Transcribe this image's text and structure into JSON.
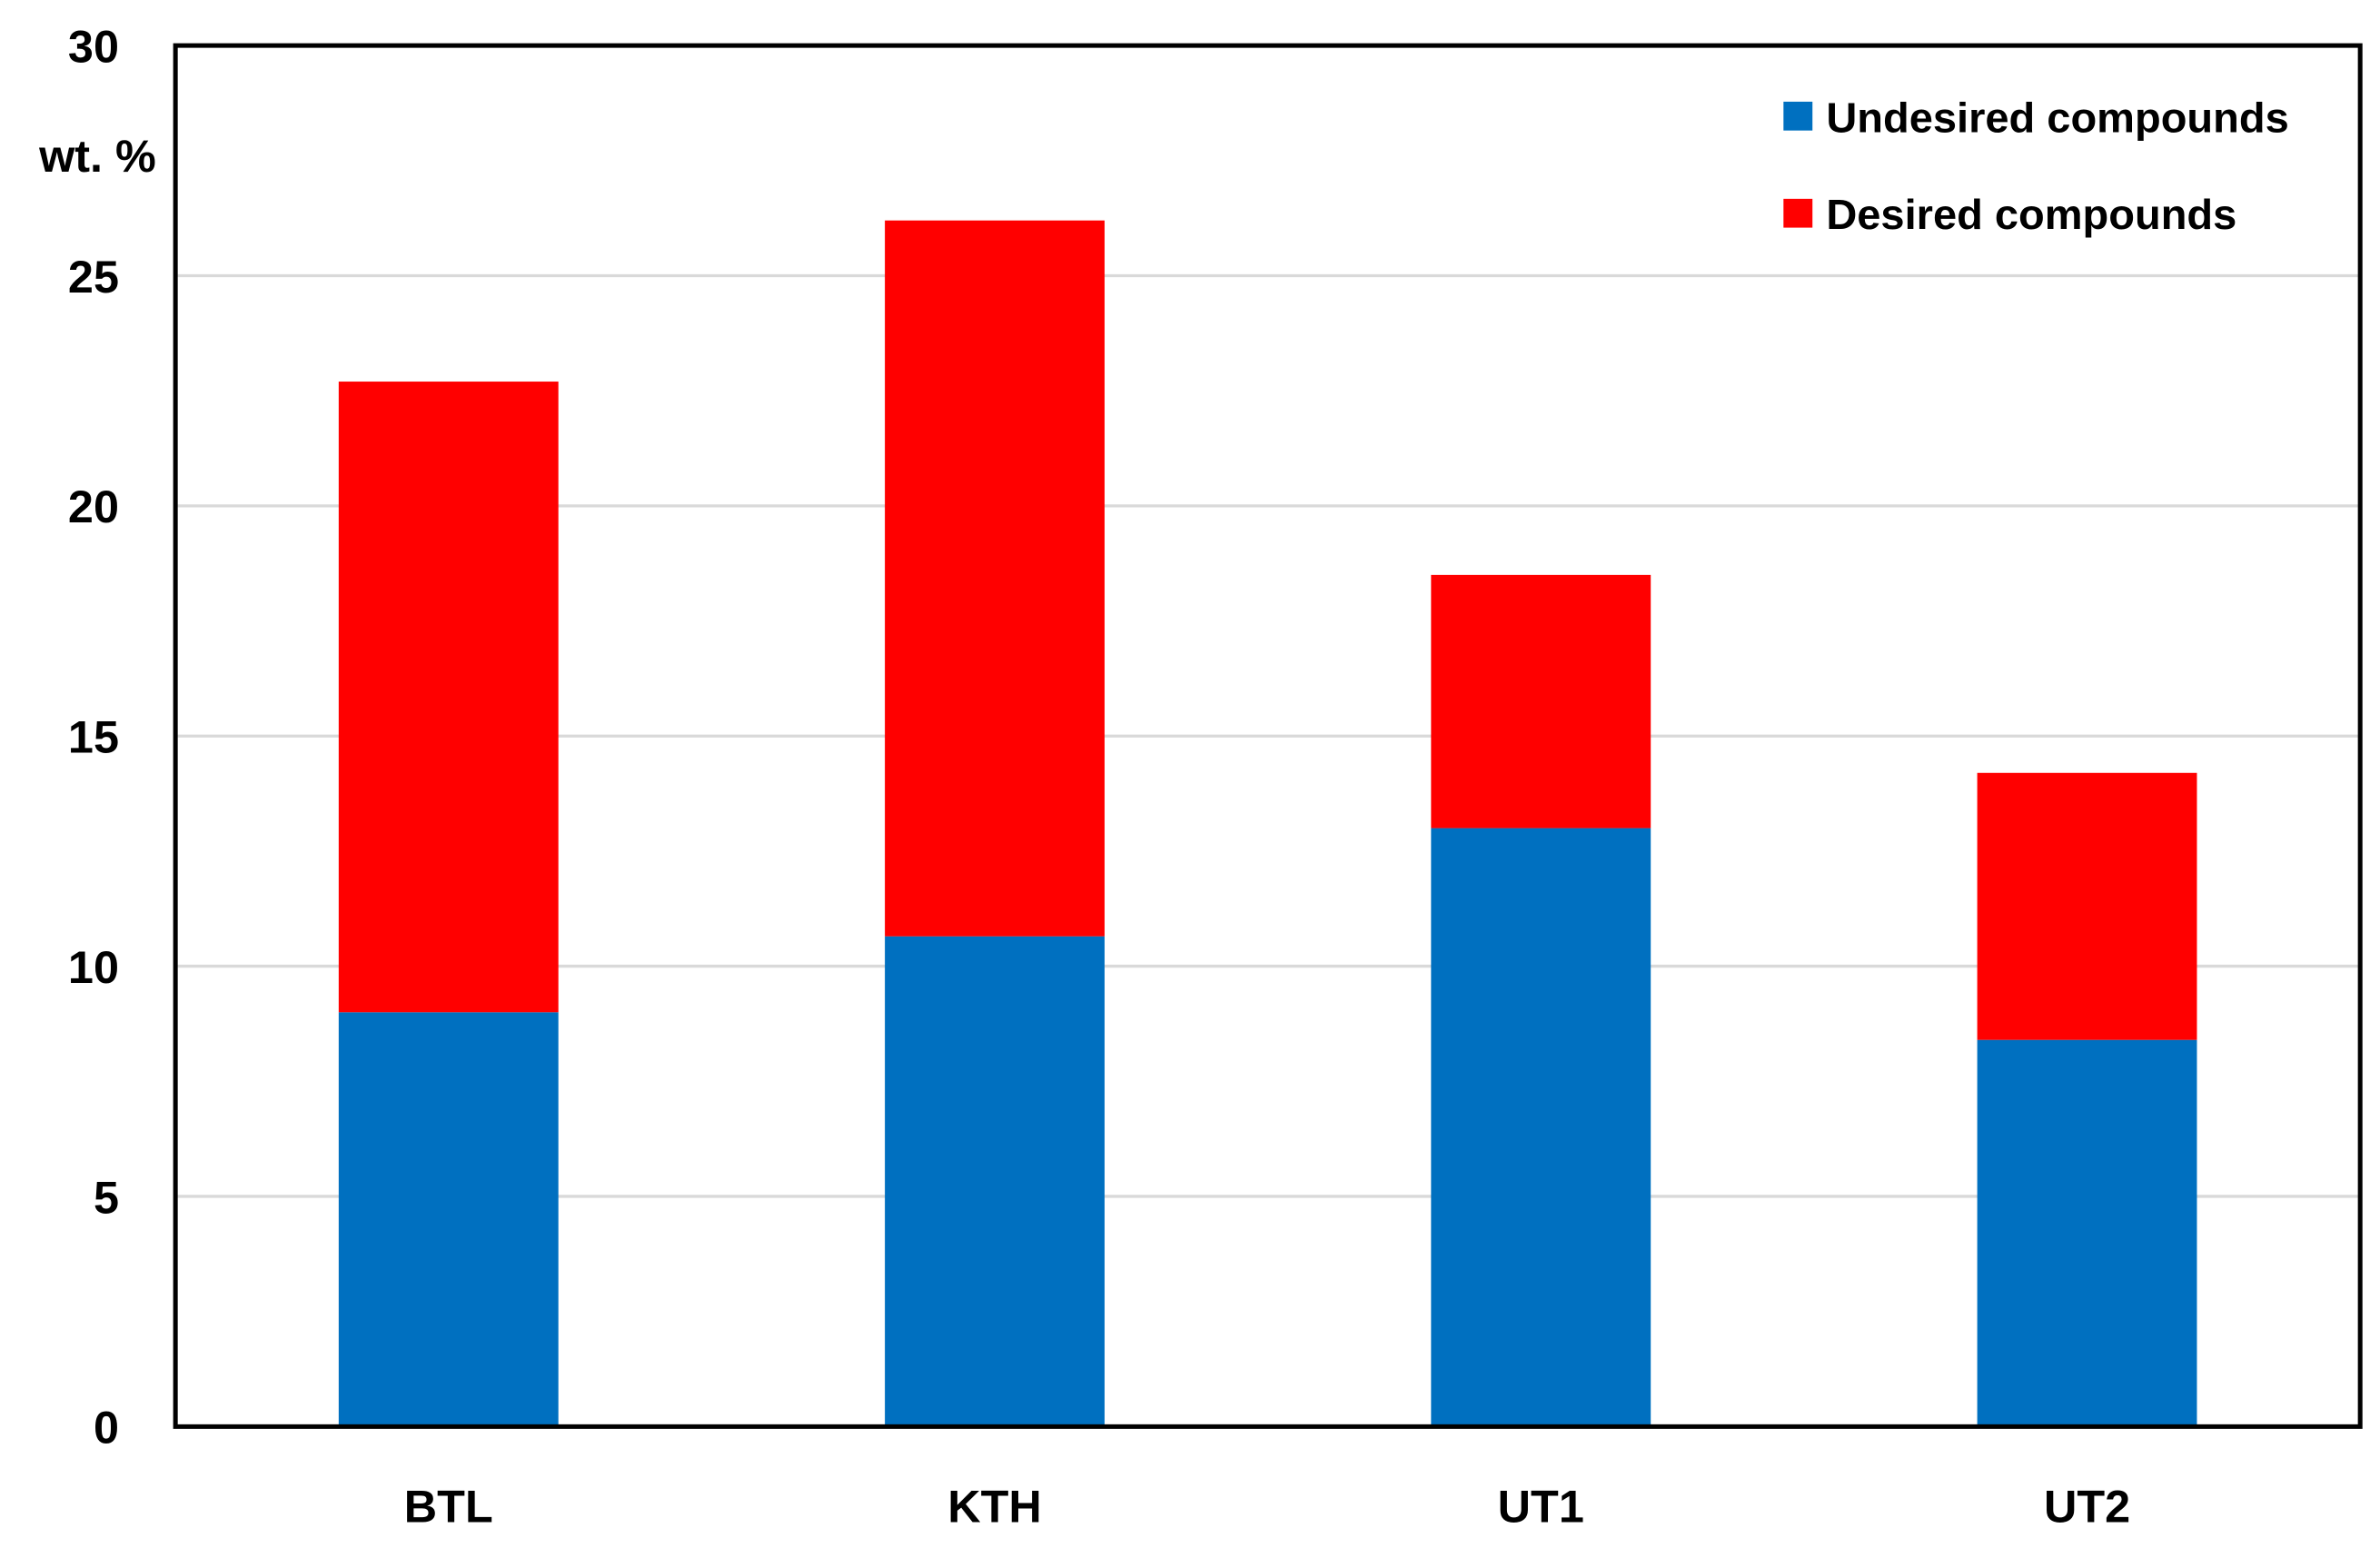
{
  "chart_data": {
    "type": "bar",
    "stacked": true,
    "title": "",
    "xlabel": "",
    "ylabel": "wt. %",
    "ylim": [
      0,
      30
    ],
    "yticks": [
      0,
      5,
      10,
      15,
      20,
      25,
      30
    ],
    "grid": true,
    "legend_position": "top-right",
    "categories": [
      "BTL",
      "KTH",
      "UT1",
      "UT2"
    ],
    "series": [
      {
        "name": "Undesired compounds",
        "color": "#0070C0",
        "values": [
          9.0,
          10.65,
          13.0,
          8.4
        ]
      },
      {
        "name": "Desired compounds",
        "color": "#FF0000",
        "values": [
          13.7,
          15.55,
          5.5,
          5.8
        ]
      }
    ]
  }
}
